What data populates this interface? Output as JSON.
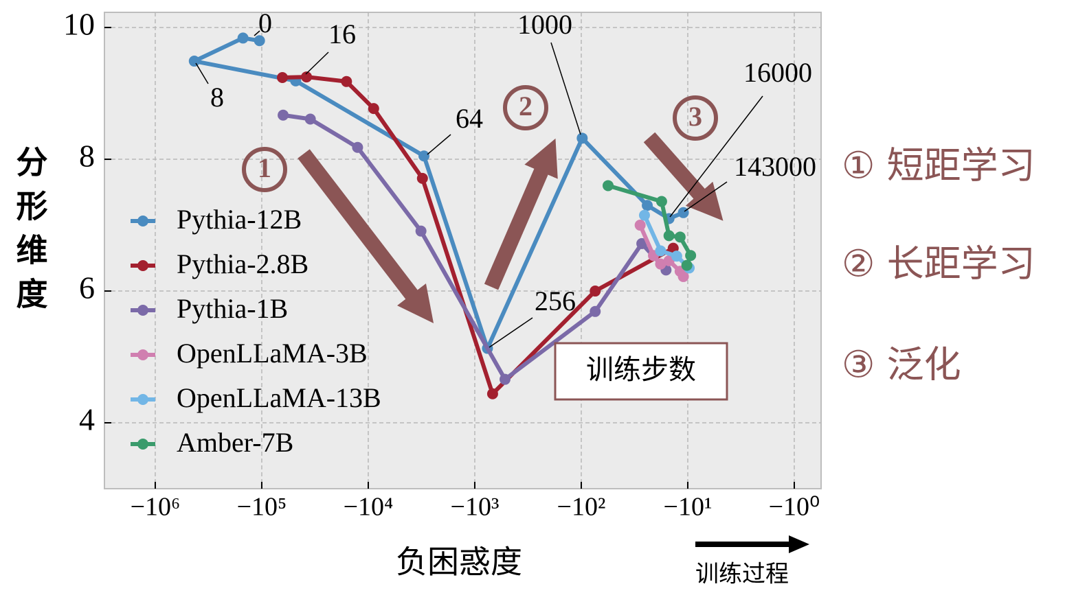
{
  "chart_data": {
    "type": "line",
    "xlabel": "负困惑度",
    "ylabel": "分形维度",
    "xscale": "neglog",
    "xlim": [
      -3000000,
      -0.56
    ],
    "ylim": [
      3,
      10.23
    ],
    "xticks": [
      {
        "value": -1000000,
        "label": "−10⁶"
      },
      {
        "value": -100000,
        "label": "−10⁵"
      },
      {
        "value": -10000,
        "label": "−10⁴"
      },
      {
        "value": -1000,
        "label": "−10³"
      },
      {
        "value": -100,
        "label": "−10²"
      },
      {
        "value": -10,
        "label": "−10¹"
      },
      {
        "value": -1,
        "label": "−10⁰"
      }
    ],
    "yticks": [
      4,
      6,
      8,
      10
    ],
    "grid": true,
    "legend": "center left",
    "series": [
      {
        "name": "Pythia-12B",
        "color": "#4a8bc0",
        "x": [
          -105000,
          -150000,
          -430000,
          -48000,
          -3000,
          -760,
          -98,
          -24,
          -15,
          -11
        ],
        "values": [
          9.8,
          9.84,
          9.49,
          9.19,
          8.05,
          5.13,
          8.32,
          7.3,
          7.1,
          7.19
        ]
      },
      {
        "name": "Pythia-2.8B",
        "color": "#a3202f",
        "x": [
          -64000,
          -38000,
          -16000,
          -8900,
          -3100,
          -680,
          -74,
          -13.7
        ],
        "values": [
          9.24,
          9.25,
          9.18,
          8.77,
          7.71,
          4.44,
          6.0,
          6.65
        ]
      },
      {
        "name": "Pythia-1B",
        "color": "#7b6aa8",
        "x": [
          -63000,
          -35000,
          -12600,
          -3200,
          -520,
          -74,
          -27,
          -16
        ],
        "values": [
          8.67,
          8.61,
          8.18,
          6.91,
          4.66,
          5.69,
          6.72,
          6.32
        ]
      },
      {
        "name": "OpenLLaMA-3B",
        "color": "#d07fb0",
        "x": [
          -28,
          -21,
          -18,
          -15,
          -11.8,
          -11
        ],
        "values": [
          7.0,
          6.54,
          6.41,
          6.46,
          6.3,
          6.22
        ]
      },
      {
        "name": "OpenLLaMA-13B",
        "color": "#72b6e6",
        "x": [
          -25.5,
          -18,
          -12.7,
          -9.7
        ],
        "values": [
          7.15,
          6.61,
          6.53,
          6.35
        ]
      },
      {
        "name": "Amber-7B",
        "color": "#3a9b6c",
        "x": [
          -56,
          -17.6,
          -15,
          -11.8,
          -9.4,
          -10.2
        ],
        "values": [
          7.6,
          7.36,
          6.84,
          6.82,
          6.54,
          6.39
        ]
      }
    ],
    "annotations": [
      "0",
      "16",
      "8",
      "64",
      "256",
      "1000",
      "16000",
      "143000"
    ],
    "phase_markers": [
      "1",
      "2",
      "3"
    ],
    "box_label": "训练步数",
    "arrow_label": "训练过程",
    "phases": [
      "① 短距学习",
      "② 长距学习",
      "③ 泛化"
    ]
  }
}
